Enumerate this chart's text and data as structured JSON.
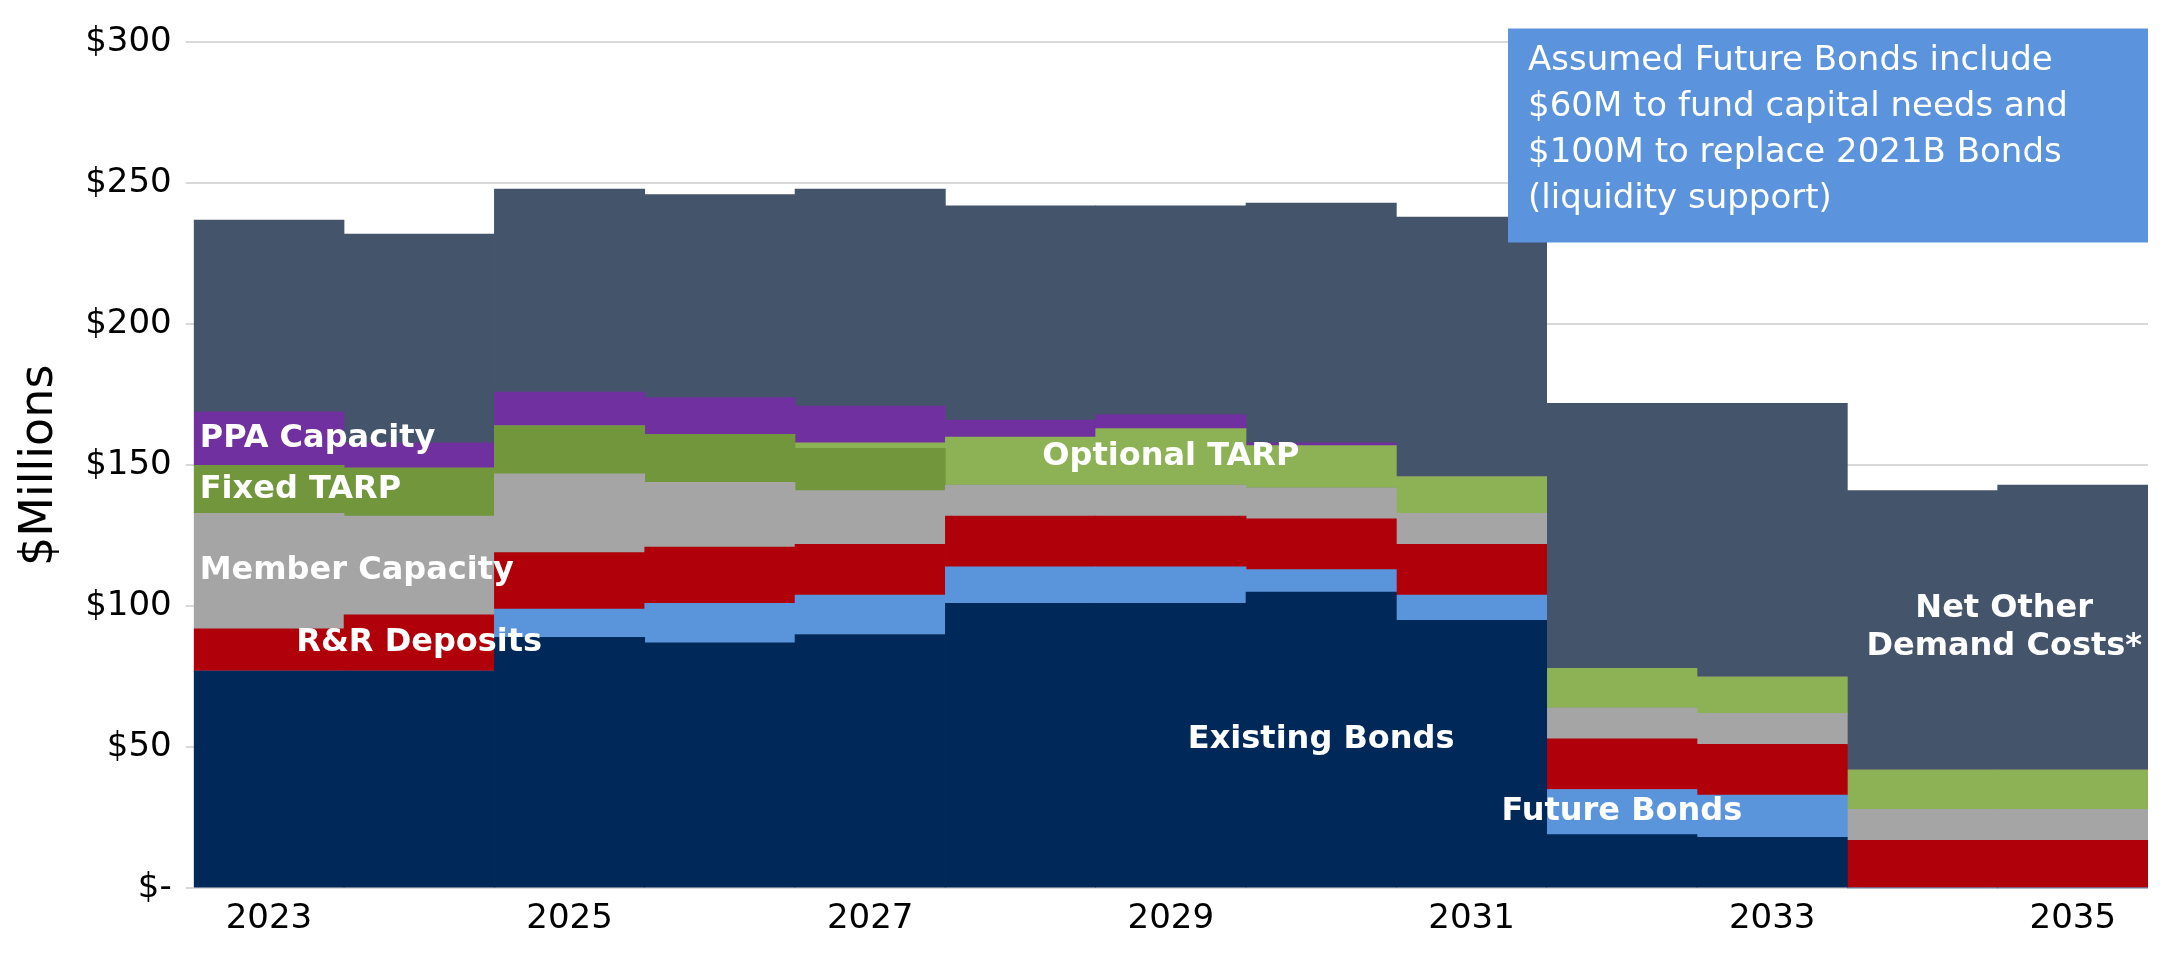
{
  "chart_data": {
    "type": "bar",
    "stacked": true,
    "ylabel": "$Millions",
    "categories": [
      "2023",
      null,
      "2025",
      null,
      "2027",
      null,
      "2029",
      null,
      "2031",
      null,
      "2033",
      null,
      "2035"
    ],
    "ylim": [
      0,
      300
    ],
    "yticks": [
      {
        "value": 0,
        "label": "$-"
      },
      {
        "value": 50,
        "label": "$50"
      },
      {
        "value": 100,
        "label": "$100"
      },
      {
        "value": 150,
        "label": "$150"
      },
      {
        "value": 200,
        "label": "$200"
      },
      {
        "value": 250,
        "label": "$250"
      },
      {
        "value": 300,
        "label": "$300"
      }
    ],
    "grid": "y",
    "legend": false,
    "annotations": [
      "Assumed Future Bonds include $60M to fund capital needs and $100M to replace 2021B Bonds (liquidity support)"
    ],
    "series": [
      {
        "name": "Existing Bonds",
        "color": "#002858",
        "values": [
          77,
          77,
          89,
          87,
          90,
          101,
          101,
          105,
          95,
          19,
          18,
          0,
          0
        ]
      },
      {
        "name": "Future Bonds",
        "color": "#5a95dc",
        "values": [
          0,
          0,
          10,
          14,
          14,
          13,
          13,
          8,
          9,
          16,
          15,
          0,
          0
        ]
      },
      {
        "name": "R&R Deposits",
        "color": "#b0000a",
        "values": [
          15,
          20,
          20,
          20,
          18,
          18,
          18,
          18,
          18,
          18,
          18,
          17,
          17
        ]
      },
      {
        "name": "Member Capacity",
        "color": "#a5a5a5",
        "values": [
          41,
          35,
          28,
          23,
          19,
          11,
          11,
          11,
          11,
          11,
          11,
          11,
          11
        ]
      },
      {
        "name": "Fixed TARP",
        "color": "#72963c",
        "values": [
          17,
          17,
          17,
          17,
          15,
          0,
          0,
          0,
          0,
          0,
          0,
          0,
          0
        ]
      },
      {
        "name": "Optional TARP",
        "color": "#8db255",
        "values": [
          0,
          0,
          0,
          0,
          2,
          17,
          20,
          15,
          13,
          14,
          13,
          14,
          14
        ]
      },
      {
        "name": "PPA Capacity",
        "color": "#7030a0",
        "values": [
          19,
          9,
          12,
          13,
          13,
          6,
          5,
          1,
          0,
          0,
          0,
          0,
          0
        ]
      },
      {
        "name": "Net Other Demand Costs*",
        "color": "#44546a",
        "values": [
          68,
          74,
          72,
          72,
          77,
          76,
          74,
          85,
          92,
          94,
          97,
          99,
          101
        ]
      }
    ]
  }
}
